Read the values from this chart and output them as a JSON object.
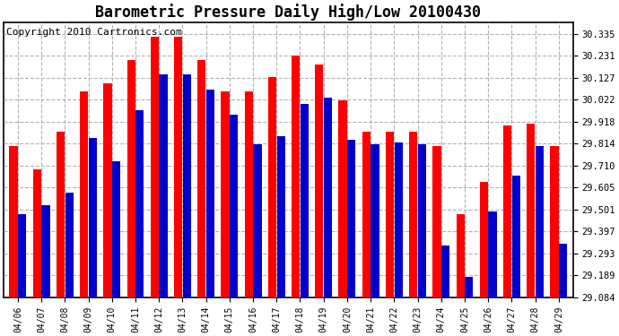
{
  "title": "Barometric Pressure Daily High/Low 20100430",
  "copyright": "Copyright 2010 Cartronics.com",
  "dates": [
    "04/06",
    "04/07",
    "04/08",
    "04/09",
    "04/10",
    "04/11",
    "04/12",
    "04/13",
    "04/14",
    "04/15",
    "04/16",
    "04/17",
    "04/18",
    "04/19",
    "04/20",
    "04/21",
    "04/22",
    "04/23",
    "04/24",
    "04/25",
    "04/26",
    "04/27",
    "04/28",
    "04/29"
  ],
  "highs": [
    29.8,
    29.69,
    29.87,
    30.06,
    30.1,
    30.21,
    30.32,
    30.32,
    30.21,
    30.06,
    30.06,
    30.13,
    30.23,
    30.19,
    30.02,
    29.87,
    29.87,
    29.87,
    29.8,
    29.48,
    29.63,
    29.9,
    29.91,
    29.8
  ],
  "lows": [
    29.48,
    29.52,
    29.58,
    29.84,
    29.73,
    29.97,
    30.14,
    30.14,
    30.07,
    29.95,
    29.81,
    29.85,
    30.0,
    30.03,
    29.83,
    29.81,
    29.82,
    29.81,
    29.33,
    29.18,
    29.49,
    29.66,
    29.8,
    29.34
  ],
  "high_color": "#ff0000",
  "low_color": "#0000cc",
  "background_color": "#ffffff",
  "grid_color": "#aaaaaa",
  "title_fontsize": 12,
  "copyright_fontsize": 8,
  "ymin": 29.084,
  "ymax": 30.39,
  "yticks": [
    29.084,
    29.189,
    29.293,
    29.397,
    29.501,
    29.605,
    29.71,
    29.814,
    29.918,
    30.022,
    30.127,
    30.231,
    30.335
  ]
}
